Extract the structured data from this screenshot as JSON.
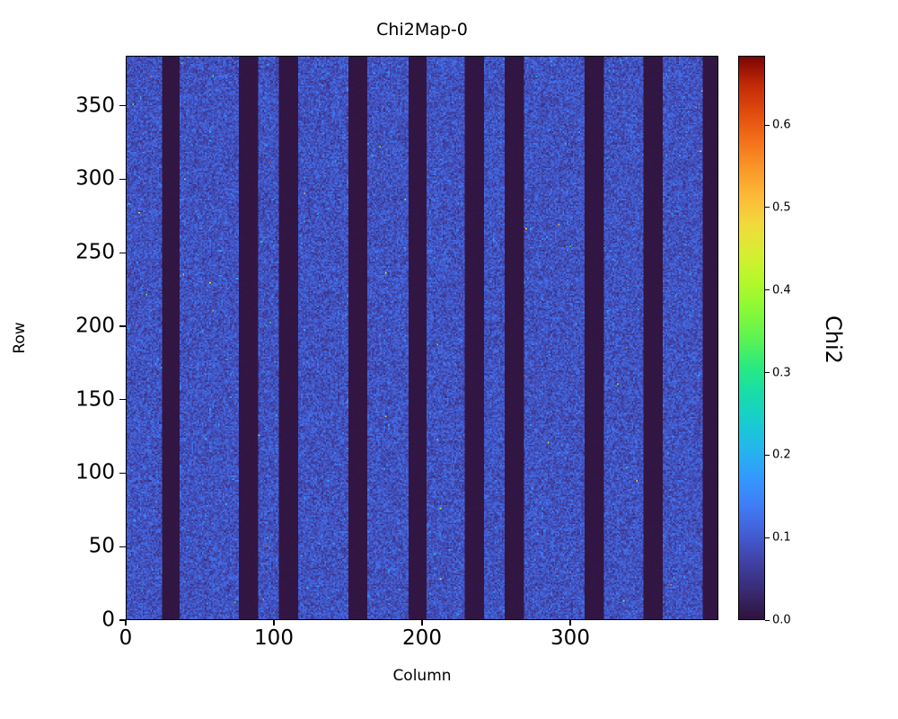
{
  "chart_data": {
    "type": "heatmap",
    "title": "Chi2Map-0",
    "xlabel": "Column",
    "ylabel": "Row",
    "x_range": [
      0,
      400
    ],
    "y_range": [
      0,
      384
    ],
    "x_ticks": [
      0,
      100,
      200,
      300
    ],
    "y_ticks": [
      0,
      50,
      100,
      150,
      200,
      250,
      300,
      350
    ],
    "grid": false,
    "legend": "none",
    "colorbar": {
      "label": "Chi2",
      "ticks": [
        0.0,
        0.1,
        0.2,
        0.3,
        0.4,
        0.5,
        0.6
      ],
      "vmin": 0.0,
      "vmax": 0.684,
      "colormap": "turbo",
      "colormap_stops": [
        "#30123b",
        "#392a73",
        "#4040a2",
        "#425dd3",
        "#407bf6",
        "#3498fe",
        "#25b4ee",
        "#18ccd0",
        "#18dcaa",
        "#2aea7f",
        "#5ff352",
        "#89f936",
        "#b4f82a",
        "#d7ee31",
        "#f1da3c",
        "#fcbb37",
        "#fa9828",
        "#f3711a",
        "#e14b0d",
        "#c22a06",
        "#7a0403"
      ]
    },
    "noise": {
      "description": "bulk of map is low-chi2 blue noise",
      "base_min": 0.035,
      "base_max": 0.145,
      "light_speckle_fraction": 0.004,
      "light_speckle_min": 0.13,
      "light_speckle_max": 0.22,
      "hot_pixel_fraction": 0.0004,
      "hot_pixel_min": 0.25,
      "hot_pixel_max": 0.68
    },
    "dead_value": 0.003,
    "dead_column_bands": [
      [
        24,
        35
      ],
      [
        76,
        88
      ],
      [
        103,
        115
      ],
      [
        150,
        162
      ],
      [
        191,
        202
      ],
      [
        229,
        241
      ],
      [
        256,
        268
      ],
      [
        310,
        322
      ],
      [
        350,
        362
      ],
      [
        390,
        399
      ]
    ]
  }
}
